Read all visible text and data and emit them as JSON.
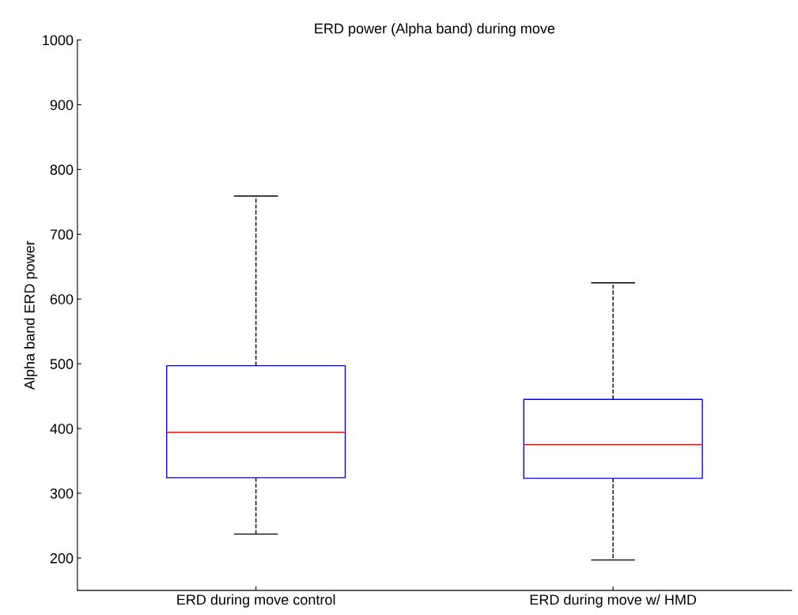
{
  "chart_data": {
    "type": "box",
    "title": "ERD power (Alpha band) during move",
    "ylabel": "Alpha band ERD power",
    "categories": [
      "ERD during move control",
      "ERD during move w/ HMD"
    ],
    "boxes": [
      {
        "low": 237,
        "q1": 324,
        "median": 394,
        "q3": 497,
        "high": 759
      },
      {
        "low": 197,
        "q1": 323,
        "median": 375,
        "q3": 445,
        "high": 625
      }
    ],
    "color": "#0000ff",
    "line_style": "dashed",
    "ylim": [
      150,
      1000
    ],
    "yticks": [
      200,
      300,
      400,
      500,
      600,
      700,
      800,
      900,
      1000
    ],
    "grid": false
  }
}
